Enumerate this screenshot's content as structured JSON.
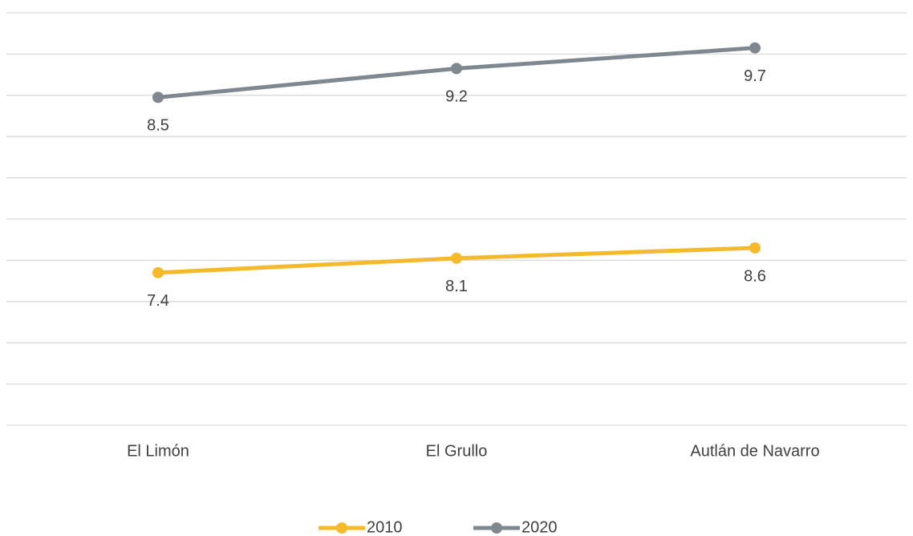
{
  "chart_data": {
    "type": "line",
    "stacked": true,
    "categories": [
      "El Limón",
      "El Grullo",
      "Autlán de Navarro"
    ],
    "series": [
      {
        "name": "2010",
        "color": "#f5b92c",
        "values": [
          7.4,
          8.1,
          8.6
        ]
      },
      {
        "name": "2020",
        "color": "#7f8890",
        "values": [
          8.5,
          9.2,
          9.7
        ]
      }
    ],
    "ylim": [
      0,
      20
    ],
    "yticks": [
      0,
      2,
      4,
      6,
      8,
      10,
      12,
      14,
      16,
      18,
      20
    ],
    "grid": true,
    "legend": "bottom"
  }
}
